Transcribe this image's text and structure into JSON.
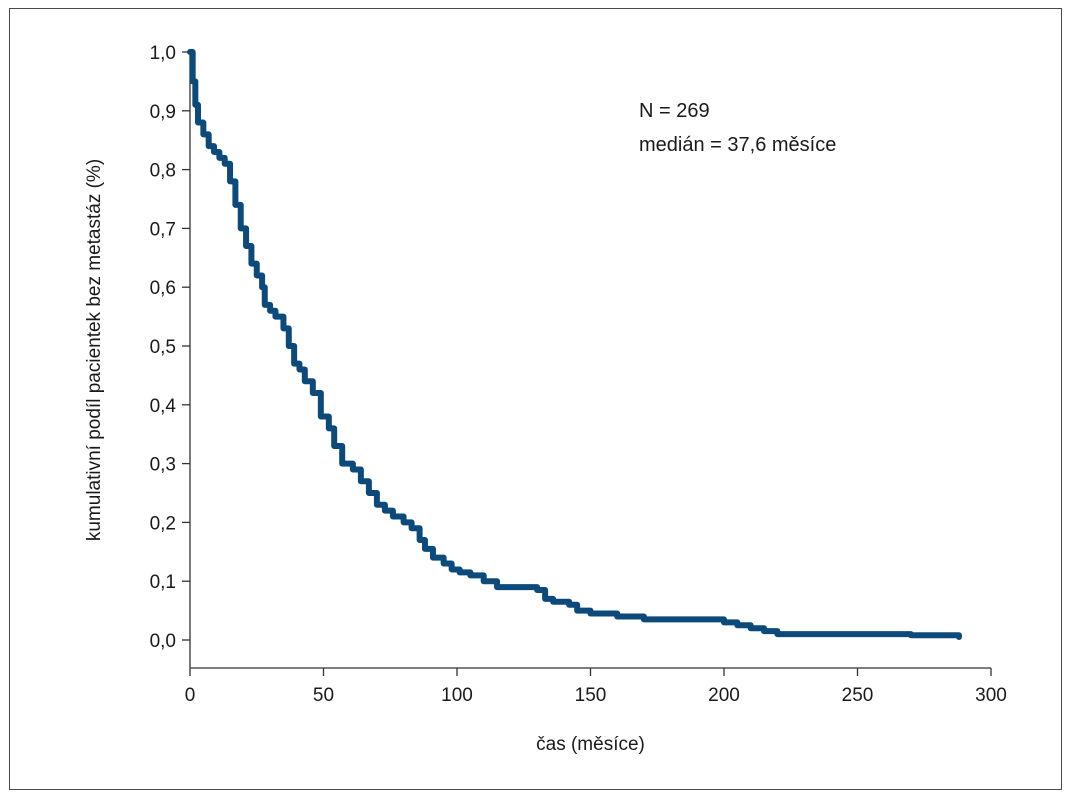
{
  "chart_data": {
    "type": "line",
    "title": "",
    "xlabel": "čas (měsíce)",
    "ylabel": "kumulativní podíl pacientek bez metastáz (%)",
    "xlim": [
      0,
      300
    ],
    "ylim": [
      0,
      1.0
    ],
    "x_ticks": [
      0,
      50,
      100,
      150,
      200,
      250,
      300
    ],
    "x_tick_labels": [
      "0",
      "50",
      "100",
      "150",
      "200",
      "250",
      "300"
    ],
    "y_ticks": [
      0.0,
      0.1,
      0.2,
      0.3,
      0.4,
      0.5,
      0.6,
      0.7,
      0.8,
      0.9,
      1.0
    ],
    "y_tick_labels": [
      "0,0",
      "0,1",
      "0,2",
      "0,3",
      "0,4",
      "0,5",
      "0,6",
      "0,7",
      "0,8",
      "0,9",
      "1,0"
    ],
    "grid": false,
    "line_color": "#0d4a7c",
    "annotations": [
      {
        "text": "N = 269",
        "position": "top-right"
      },
      {
        "text": "medián = 37,6 měsíce",
        "position": "top-right"
      }
    ],
    "series": [
      {
        "x": [
          0,
          1,
          2,
          3,
          5,
          7,
          9,
          11,
          13,
          15,
          17,
          19,
          21,
          23,
          25,
          27,
          28,
          30,
          32,
          35,
          37,
          39,
          41,
          43,
          46,
          49,
          52,
          54,
          57,
          61,
          64,
          67,
          70,
          73,
          76,
          80,
          83,
          86,
          88,
          91,
          95,
          98,
          101,
          105,
          110,
          115,
          120,
          125,
          130,
          133,
          136,
          142,
          145,
          150,
          160,
          170,
          180,
          190,
          200,
          205,
          210,
          215,
          220,
          230,
          240,
          250,
          270,
          286,
          288
        ],
        "y": [
          1.0,
          0.95,
          0.91,
          0.88,
          0.86,
          0.84,
          0.83,
          0.82,
          0.81,
          0.78,
          0.74,
          0.7,
          0.67,
          0.64,
          0.62,
          0.6,
          0.57,
          0.56,
          0.55,
          0.53,
          0.5,
          0.47,
          0.46,
          0.44,
          0.42,
          0.38,
          0.36,
          0.33,
          0.3,
          0.29,
          0.27,
          0.25,
          0.23,
          0.22,
          0.21,
          0.2,
          0.19,
          0.17,
          0.155,
          0.14,
          0.13,
          0.12,
          0.115,
          0.11,
          0.1,
          0.09,
          0.09,
          0.09,
          0.085,
          0.07,
          0.065,
          0.06,
          0.05,
          0.045,
          0.04,
          0.035,
          0.035,
          0.035,
          0.03,
          0.025,
          0.02,
          0.015,
          0.01,
          0.01,
          0.01,
          0.01,
          0.008,
          0.008,
          0.005
        ]
      }
    ]
  }
}
